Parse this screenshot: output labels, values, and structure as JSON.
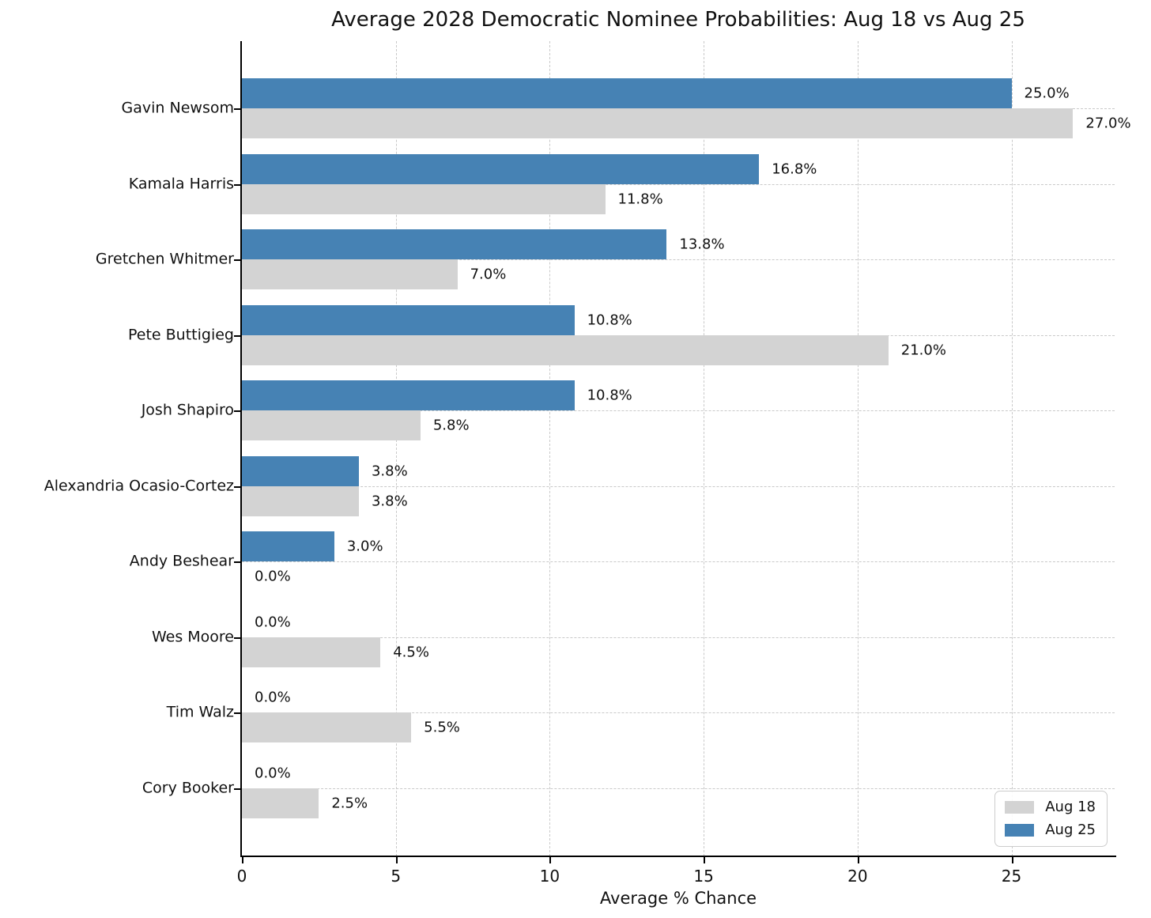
{
  "chart_data": {
    "type": "bar",
    "orientation": "horizontal",
    "title": "Average 2028 Democratic Nominee Probabilities: Aug 18 vs Aug 25",
    "xlabel": "Average % Chance",
    "ylabel": "",
    "xlim": [
      0,
      28.35
    ],
    "xticks": [
      0,
      5,
      10,
      15,
      20,
      25
    ],
    "grid": "dashed light-gray gridlines on both axes, drawn behind bars",
    "legend_position": "lower right",
    "categories": [
      "Gavin Newsom",
      "Kamala Harris",
      "Gretchen Whitmer",
      "Pete Buttigieg",
      "Josh Shapiro",
      "Alexandria Ocasio-Cortez",
      "Andy Beshear",
      "Wes Moore",
      "Tim Walz",
      "Cory Booker"
    ],
    "series": [
      {
        "name": "Aug 25",
        "color": "#4682B4",
        "position_in_group": "top",
        "values": [
          25.0,
          16.8,
          13.8,
          10.8,
          10.8,
          3.8,
          3.0,
          0.0,
          0.0,
          0.0
        ],
        "labels": [
          "25.0%",
          "16.8%",
          "13.8%",
          "10.8%",
          "10.8%",
          "3.8%",
          "3.0%",
          "0.0%",
          "0.0%",
          "0.0%"
        ]
      },
      {
        "name": "Aug 18",
        "color": "#D3D3D3",
        "position_in_group": "bottom",
        "values": [
          27.0,
          11.8,
          7.0,
          21.0,
          5.8,
          3.8,
          0.0,
          4.5,
          5.5,
          2.5
        ],
        "labels": [
          "27.0%",
          "11.8%",
          "7.0%",
          "21.0%",
          "5.8%",
          "3.8%",
          "0.0%",
          "4.5%",
          "5.5%",
          "2.5%"
        ]
      }
    ]
  },
  "legend": {
    "items": [
      {
        "label": "Aug 18",
        "color": "#D3D3D3"
      },
      {
        "label": "Aug 25",
        "color": "#4682B4"
      }
    ]
  },
  "colors": {
    "background": "#FFFFFF",
    "grid": "#C9C9C9",
    "spine": "#000000",
    "text": "#111111"
  }
}
